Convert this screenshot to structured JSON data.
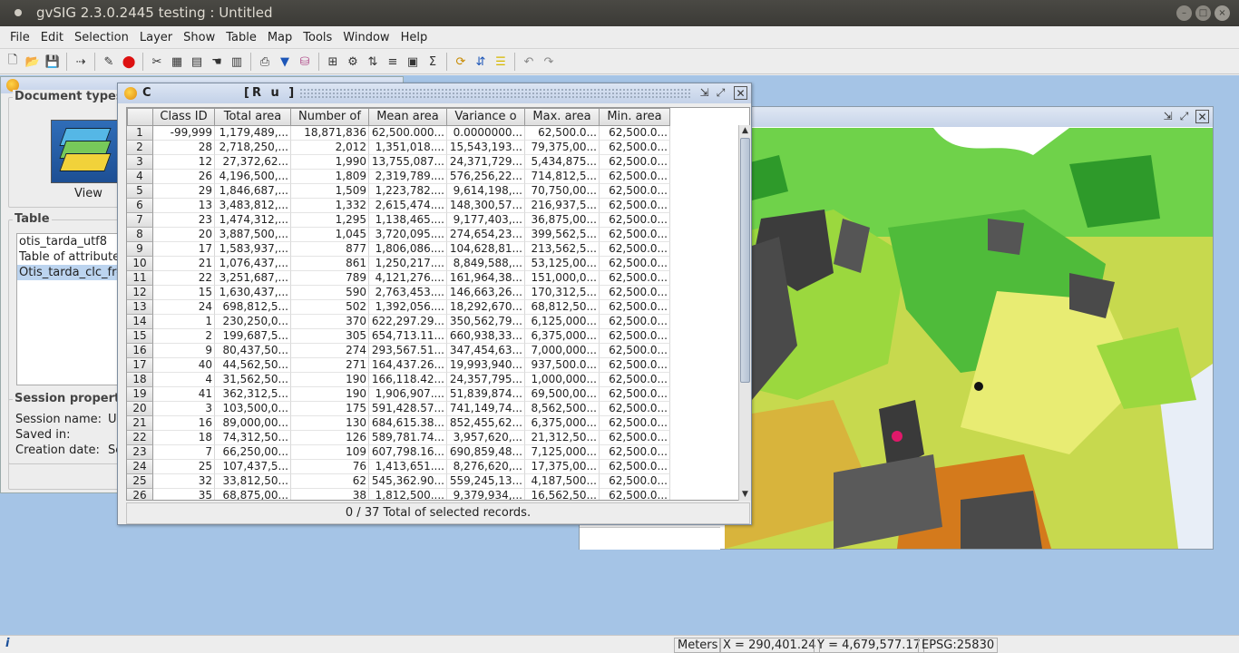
{
  "window": {
    "title": "gvSIG 2.3.0.2445 testing : Untitled"
  },
  "menu": [
    "File",
    "Edit",
    "Selection",
    "Layer",
    "Show",
    "Table",
    "Map",
    "Tools",
    "Window",
    "Help"
  ],
  "project": {
    "doc_types_label": "Document types",
    "view_label": "View",
    "table_label": "Table",
    "tables": [
      "otis_tarda_utf8",
      "Table of attributes",
      "Otis_tarda_clc_fre"
    ],
    "selected_table_index": 2,
    "session_label": "Session propert",
    "session_name_label": "Session name:",
    "session_name_value": "Ur",
    "saved_in_label": "Saved in:",
    "creation_date_label": "Creation date:",
    "creation_date_value": "Se"
  },
  "table_window": {
    "title_left": "C",
    "title_right": "[R    u ]",
    "columns": [
      "Class ID",
      "Total area",
      "Number of",
      "Mean area",
      "Variance o",
      "Max. area",
      "Min. area"
    ],
    "rows": [
      [
        "1",
        "-99,999",
        "1,179,489,...",
        "18,871,836",
        "62,500.000...",
        "0.0000000...",
        "62,500.0...",
        "62,500.0..."
      ],
      [
        "2",
        "28",
        "2,718,250,...",
        "2,012",
        "1,351,018....",
        "15,543,193...",
        "79,375,00...",
        "62,500.0..."
      ],
      [
        "3",
        "12",
        "27,372,62...",
        "1,990",
        "13,755,087...",
        "24,371,729...",
        "5,434,875...",
        "62,500.0..."
      ],
      [
        "4",
        "26",
        "4,196,500,...",
        "1,809",
        "2,319,789....",
        "576,256,22...",
        "714,812,5...",
        "62,500.0..."
      ],
      [
        "5",
        "29",
        "1,846,687,...",
        "1,509",
        "1,223,782....",
        "9,614,198,...",
        "70,750,00...",
        "62,500.0..."
      ],
      [
        "6",
        "13",
        "3,483,812,...",
        "1,332",
        "2,615,474....",
        "148,300,57...",
        "216,937,5...",
        "62,500.0..."
      ],
      [
        "7",
        "23",
        "1,474,312,...",
        "1,295",
        "1,138,465....",
        "9,177,403,...",
        "36,875,00...",
        "62,500.0..."
      ],
      [
        "8",
        "20",
        "3,887,500,...",
        "1,045",
        "3,720,095....",
        "274,654,23...",
        "399,562,5...",
        "62,500.0..."
      ],
      [
        "9",
        "17",
        "1,583,937,...",
        "877",
        "1,806,086....",
        "104,628,81...",
        "213,562,5...",
        "62,500.0..."
      ],
      [
        "10",
        "21",
        "1,076,437,...",
        "861",
        "1,250,217....",
        "8,849,588,...",
        "53,125,00...",
        "62,500.0..."
      ],
      [
        "11",
        "22",
        "3,251,687,...",
        "789",
        "4,121,276....",
        "161,964,38...",
        "151,000,0...",
        "62,500.0..."
      ],
      [
        "12",
        "15",
        "1,630,437,...",
        "590",
        "2,763,453....",
        "146,663,26...",
        "170,312,5...",
        "62,500.0..."
      ],
      [
        "13",
        "24",
        "698,812,5...",
        "502",
        "1,392,056....",
        "18,292,670...",
        "68,812,50...",
        "62,500.0..."
      ],
      [
        "14",
        "1",
        "230,250,0...",
        "370",
        "622,297.29...",
        "350,562,79...",
        "6,125,000...",
        "62,500.0..."
      ],
      [
        "15",
        "2",
        "199,687,5...",
        "305",
        "654,713.11...",
        "660,938,33...",
        "6,375,000...",
        "62,500.0..."
      ],
      [
        "16",
        "9",
        "80,437,50...",
        "274",
        "293,567.51...",
        "347,454,63...",
        "7,000,000...",
        "62,500.0..."
      ],
      [
        "17",
        "40",
        "44,562,50...",
        "271",
        "164,437.26...",
        "19,993,940...",
        "937,500.0...",
        "62,500.0..."
      ],
      [
        "18",
        "4",
        "31,562,50...",
        "190",
        "166,118.42...",
        "24,357,795...",
        "1,000,000...",
        "62,500.0..."
      ],
      [
        "19",
        "41",
        "362,312,5...",
        "190",
        "1,906,907....",
        "51,839,874...",
        "69,500,00...",
        "62,500.0..."
      ],
      [
        "20",
        "3",
        "103,500,0...",
        "175",
        "591,428.57...",
        "741,149,74...",
        "8,562,500...",
        "62,500.0..."
      ],
      [
        "21",
        "16",
        "89,000,00...",
        "130",
        "684,615.38...",
        "852,455,62...",
        "6,375,000...",
        "62,500.0..."
      ],
      [
        "22",
        "18",
        "74,312,50...",
        "126",
        "589,781.74...",
        "3,957,620,...",
        "21,312,50...",
        "62,500.0..."
      ],
      [
        "23",
        "7",
        "66,250,00...",
        "109",
        "607,798.16...",
        "690,859,48...",
        "7,125,000...",
        "62,500.0..."
      ],
      [
        "24",
        "25",
        "107,437,5...",
        "76",
        "1,413,651....",
        "8,276,620,...",
        "17,375,00...",
        "62,500.0..."
      ],
      [
        "25",
        "32",
        "33,812,50...",
        "62",
        "545,362.90...",
        "559,245,13...",
        "4,187,500...",
        "62,500.0..."
      ],
      [
        "26",
        "35",
        "68,875,00...",
        "38",
        "1,812,500....",
        "9,379,934,...",
        "16,562,50...",
        "62,500.0..."
      ]
    ],
    "footer": "0 / 37 Total of selected records."
  },
  "status": {
    "units": "Meters",
    "x": "X = 290,401.24",
    "y": "Y = 4,679,577.17",
    "crs": "EPSG:25830"
  }
}
